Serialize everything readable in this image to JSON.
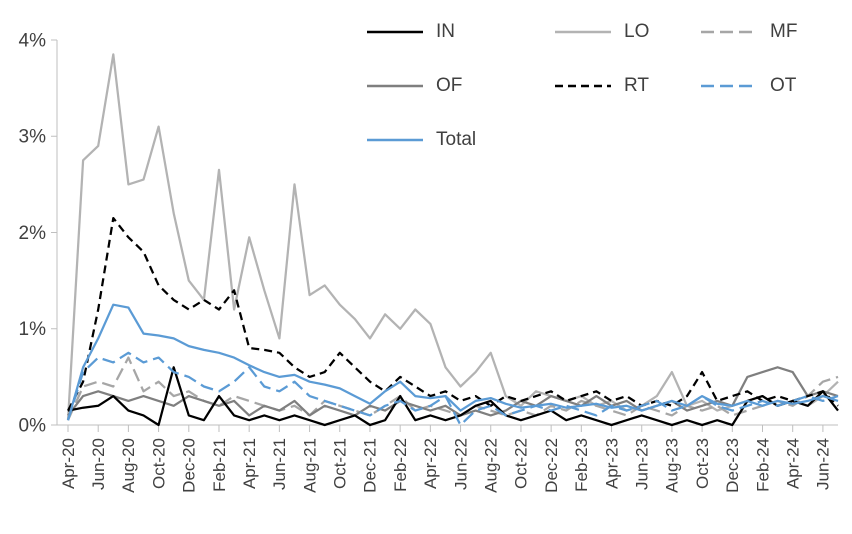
{
  "chart_data": {
    "type": "line",
    "title": "",
    "xlabel": "",
    "ylabel": "",
    "ylim": [
      0,
      4
    ],
    "yticks": [
      "0%",
      "1%",
      "2%",
      "3%",
      "4%"
    ],
    "grid": false,
    "legend_position": "top-right",
    "xtick_every": 2,
    "x": [
      "Apr-20",
      "May-20",
      "Jun-20",
      "Jul-20",
      "Aug-20",
      "Sep-20",
      "Oct-20",
      "Nov-20",
      "Dec-20",
      "Jan-21",
      "Feb-21",
      "Mar-21",
      "Apr-21",
      "May-21",
      "Jun-21",
      "Jul-21",
      "Aug-21",
      "Sep-21",
      "Oct-21",
      "Nov-21",
      "Dec-21",
      "Jan-22",
      "Feb-22",
      "Mar-22",
      "Apr-22",
      "May-22",
      "Jun-22",
      "Jul-22",
      "Aug-22",
      "Sep-22",
      "Oct-22",
      "Nov-22",
      "Dec-22",
      "Jan-23",
      "Feb-23",
      "Mar-23",
      "Apr-23",
      "May-23",
      "Jun-23",
      "Jul-23",
      "Aug-23",
      "Sep-23",
      "Oct-23",
      "Nov-23",
      "Dec-23",
      "Jan-24",
      "Feb-24",
      "Mar-24",
      "Apr-24",
      "May-24",
      "Jun-24",
      "Jul-24"
    ],
    "series": [
      {
        "name": "IN",
        "color": "#000000",
        "dash": "solid",
        "values": [
          0.15,
          0.18,
          0.2,
          0.3,
          0.15,
          0.1,
          0,
          0.6,
          0.1,
          0.05,
          0.3,
          0.1,
          0.05,
          0.1,
          0.05,
          0.1,
          0.05,
          0,
          0.05,
          0.1,
          0,
          0.05,
          0.3,
          0.05,
          0.1,
          0.05,
          0.1,
          0.2,
          0.25,
          0.1,
          0.05,
          0.1,
          0.15,
          0.05,
          0.1,
          0.05,
          0,
          0.05,
          0.1,
          0.05,
          0,
          0.05,
          0,
          0.05,
          0,
          0.25,
          0.3,
          0.2,
          0.25,
          0.2,
          0.35,
          0.15
        ]
      },
      {
        "name": "LO",
        "color": "#b3b3b3",
        "dash": "solid",
        "values": [
          0.05,
          2.75,
          2.9,
          3.85,
          2.5,
          2.55,
          3.1,
          2.2,
          1.5,
          1.3,
          2.65,
          1.2,
          1.95,
          1.4,
          0.9,
          2.5,
          1.35,
          1.45,
          1.25,
          1.1,
          0.9,
          1.15,
          1,
          1.2,
          1.05,
          0.6,
          0.4,
          0.55,
          0.75,
          0.3,
          0.2,
          0.35,
          0.3,
          0.25,
          0.3,
          0.2,
          0.25,
          0.15,
          0.2,
          0.3,
          0.55,
          0.2,
          0.25,
          0.15,
          0.2,
          0.25,
          0.3,
          0.2,
          0.25,
          0.2,
          0.3,
          0.45
        ]
      },
      {
        "name": "MF",
        "color": "#a6a6a6",
        "dash": "long-dash",
        "values": [
          0.05,
          0.4,
          0.45,
          0.4,
          0.7,
          0.35,
          0.45,
          0.3,
          0.35,
          0.25,
          0.2,
          0.3,
          0.25,
          0.2,
          0.15,
          0.2,
          0.1,
          0.25,
          0.2,
          0.15,
          0.1,
          0.2,
          0.3,
          0.15,
          0.2,
          0.15,
          0.1,
          0.2,
          0.15,
          0.1,
          0.15,
          0.1,
          0.2,
          0.15,
          0.25,
          0.2,
          0.15,
          0.1,
          0.2,
          0.15,
          0.1,
          0.2,
          0.15,
          0.2,
          0.1,
          0.15,
          0.2,
          0.25,
          0.2,
          0.3,
          0.45,
          0.5
        ]
      },
      {
        "name": "OF",
        "color": "#7f7f7f",
        "dash": "solid",
        "values": [
          0.1,
          0.3,
          0.35,
          0.3,
          0.25,
          0.3,
          0.25,
          0.2,
          0.3,
          0.25,
          0.2,
          0.25,
          0.1,
          0.2,
          0.15,
          0.25,
          0.1,
          0.2,
          0.15,
          0.1,
          0.2,
          0.15,
          0.25,
          0.2,
          0.15,
          0.2,
          0.1,
          0.15,
          0.1,
          0.15,
          0.25,
          0.2,
          0.3,
          0.25,
          0.2,
          0.3,
          0.2,
          0.25,
          0.15,
          0.2,
          0.25,
          0.15,
          0.2,
          0.25,
          0.2,
          0.5,
          0.55,
          0.6,
          0.55,
          0.3,
          0.35,
          0.3
        ]
      },
      {
        "name": "RT",
        "color": "#000000",
        "dash": "dash",
        "values": [
          0.15,
          0.45,
          1.2,
          2.15,
          1.95,
          1.8,
          1.45,
          1.3,
          1.2,
          1.3,
          1.2,
          1.4,
          0.8,
          0.78,
          0.75,
          0.6,
          0.5,
          0.55,
          0.75,
          0.6,
          0.45,
          0.35,
          0.5,
          0.4,
          0.3,
          0.35,
          0.25,
          0.3,
          0.2,
          0.3,
          0.25,
          0.3,
          0.35,
          0.25,
          0.3,
          0.35,
          0.25,
          0.3,
          0.2,
          0.25,
          0.2,
          0.3,
          0.55,
          0.25,
          0.3,
          0.35,
          0.25,
          0.3,
          0.25,
          0.3,
          0.35,
          0.2
        ]
      },
      {
        "name": "OT",
        "color": "#5b9bd5",
        "dash": "long-dash",
        "values": [
          0.05,
          0.55,
          0.7,
          0.65,
          0.75,
          0.65,
          0.7,
          0.55,
          0.5,
          0.4,
          0.35,
          0.45,
          0.6,
          0.4,
          0.35,
          0.45,
          0.3,
          0.25,
          0.2,
          0.15,
          0.1,
          0.2,
          0.25,
          0.15,
          0.2,
          0.3,
          0,
          0.15,
          0.2,
          0.1,
          0.15,
          0.2,
          0.15,
          0.2,
          0.15,
          0.1,
          0.2,
          0.15,
          0.2,
          0.25,
          0.15,
          0.2,
          0.3,
          0.2,
          0.15,
          0.2,
          0.25,
          0.2,
          0.25,
          0.3,
          0.25,
          0.3
        ]
      },
      {
        "name": "Total",
        "color": "#5b9bd5",
        "dash": "solid",
        "values": [
          0.05,
          0.6,
          0.9,
          1.25,
          1.22,
          0.95,
          0.93,
          0.9,
          0.82,
          0.78,
          0.75,
          0.7,
          0.62,
          0.55,
          0.5,
          0.52,
          0.45,
          0.42,
          0.38,
          0.3,
          0.22,
          0.35,
          0.45,
          0.3,
          0.28,
          0.3,
          0.15,
          0.25,
          0.28,
          0.22,
          0.18,
          0.2,
          0.22,
          0.18,
          0.2,
          0.22,
          0.18,
          0.2,
          0.15,
          0.2,
          0.25,
          0.2,
          0.3,
          0.22,
          0.2,
          0.25,
          0.2,
          0.25,
          0.22,
          0.25,
          0.3,
          0.25
        ]
      }
    ]
  }
}
